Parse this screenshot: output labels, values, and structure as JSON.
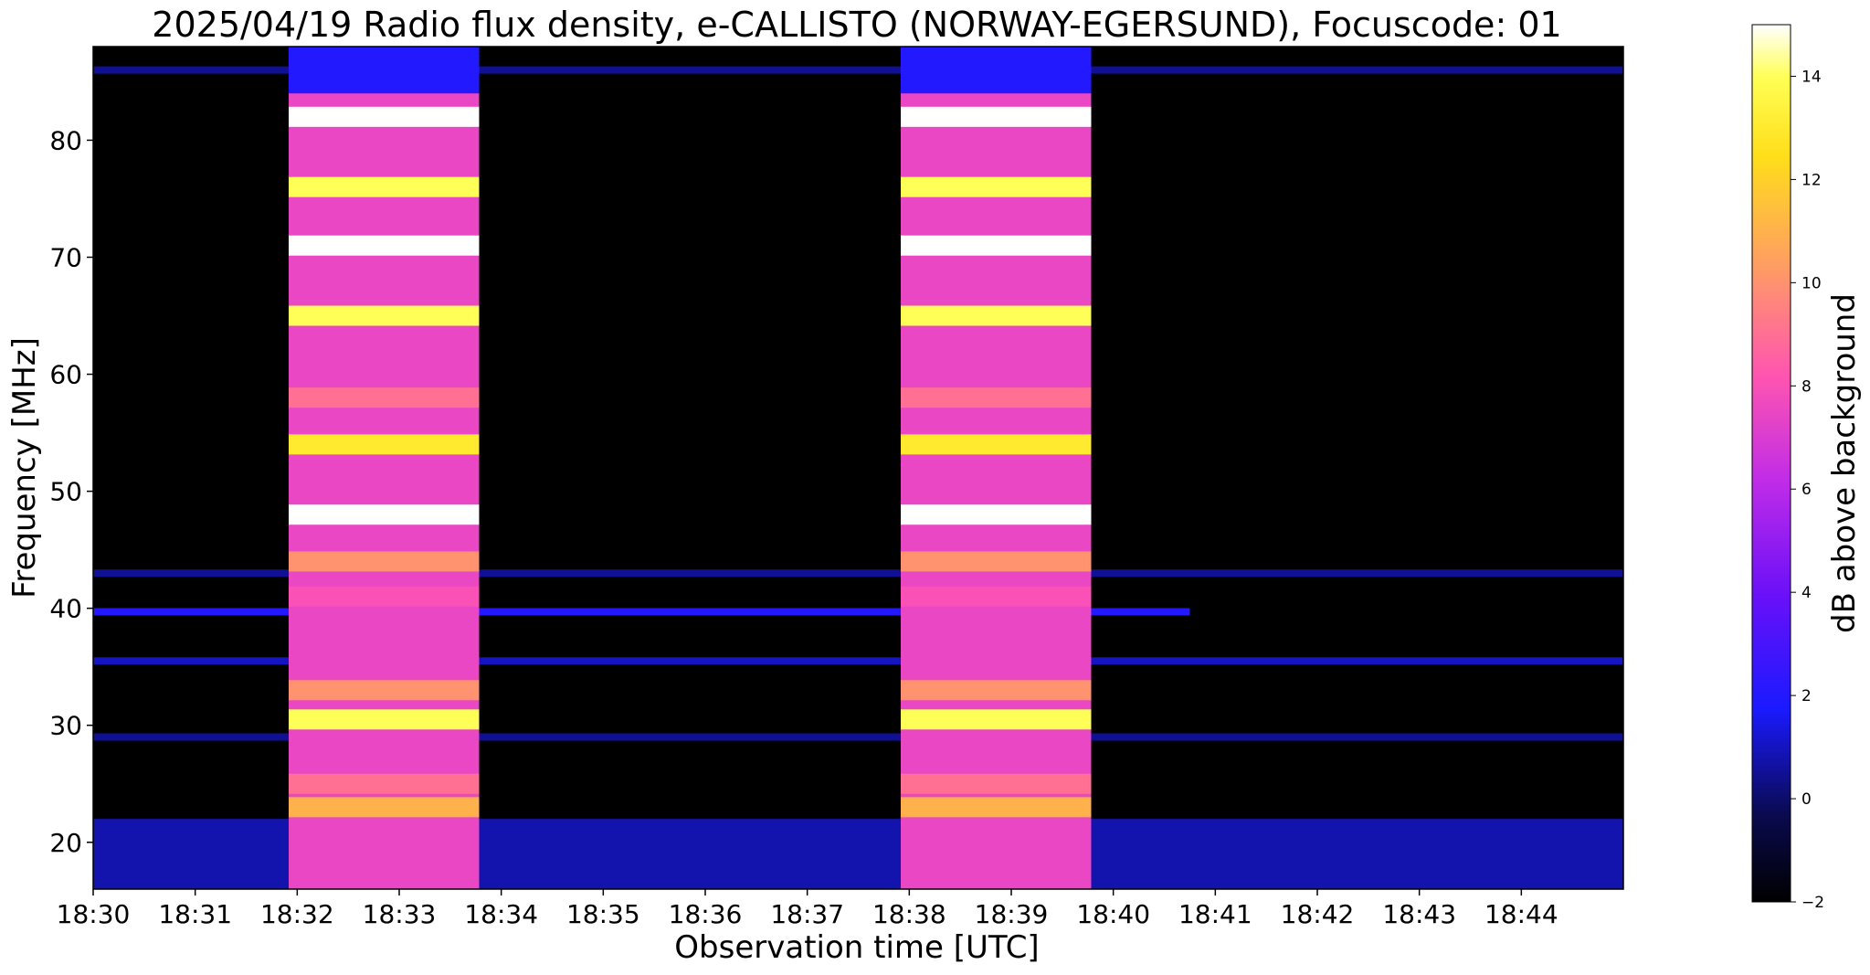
{
  "chart_data": {
    "type": "heatmap",
    "title": "2025/04/19  Radio flux density, e-CALLISTO (NORWAY-EGERSUND), Focuscode: 01",
    "xlabel": "Observation time [UTC]",
    "ylabel": "Frequency [MHz]",
    "colorbar_label": "dB above background",
    "colormap": "gnuplot2",
    "x_ticks": [
      "18:30",
      "18:31",
      "18:32",
      "18:33",
      "18:34",
      "18:35",
      "18:36",
      "18:37",
      "18:38",
      "18:39",
      "18:40",
      "18:41",
      "18:42",
      "18:43",
      "18:44"
    ],
    "x_range_minutes": [
      0,
      15
    ],
    "y_ticks": [
      20,
      30,
      40,
      50,
      60,
      70,
      80
    ],
    "ylim": [
      16,
      88
    ],
    "colorbar_ticks": [
      -2,
      0,
      2,
      4,
      6,
      8,
      10,
      12,
      14
    ],
    "colorbar_range": [
      -2,
      15
    ],
    "bursts": [
      {
        "start": "18:31:55",
        "end": "18:33:47"
      },
      {
        "start": "18:37:55",
        "end": "18:39:47"
      }
    ],
    "burst_bands": [
      {
        "freq_mhz": 82,
        "level_db": 15
      },
      {
        "freq_mhz": 76,
        "level_db": 14
      },
      {
        "freq_mhz": 71,
        "level_db": 15
      },
      {
        "freq_mhz": 65,
        "level_db": 14
      },
      {
        "freq_mhz": 58,
        "level_db": 9
      },
      {
        "freq_mhz": 54,
        "level_db": 13
      },
      {
        "freq_mhz": 48,
        "level_db": 15
      },
      {
        "freq_mhz": 44,
        "level_db": 10
      },
      {
        "freq_mhz": 41,
        "level_db": 8
      },
      {
        "freq_mhz": 33,
        "level_db": 10
      },
      {
        "freq_mhz": 30.5,
        "level_db": 14
      },
      {
        "freq_mhz": 25,
        "level_db": 9
      },
      {
        "freq_mhz": 23,
        "level_db": 11
      }
    ],
    "background_lines": [
      {
        "freq_mhz": 39.7,
        "level_db": 2,
        "end": "18:40:45"
      },
      {
        "freq_mhz": 35.5,
        "level_db": 1
      },
      {
        "freq_mhz": 43,
        "level_db": 0.5
      },
      {
        "freq_mhz": 29,
        "level_db": 0.5
      },
      {
        "freq_mhz": 86,
        "level_db": 0.5
      }
    ]
  }
}
